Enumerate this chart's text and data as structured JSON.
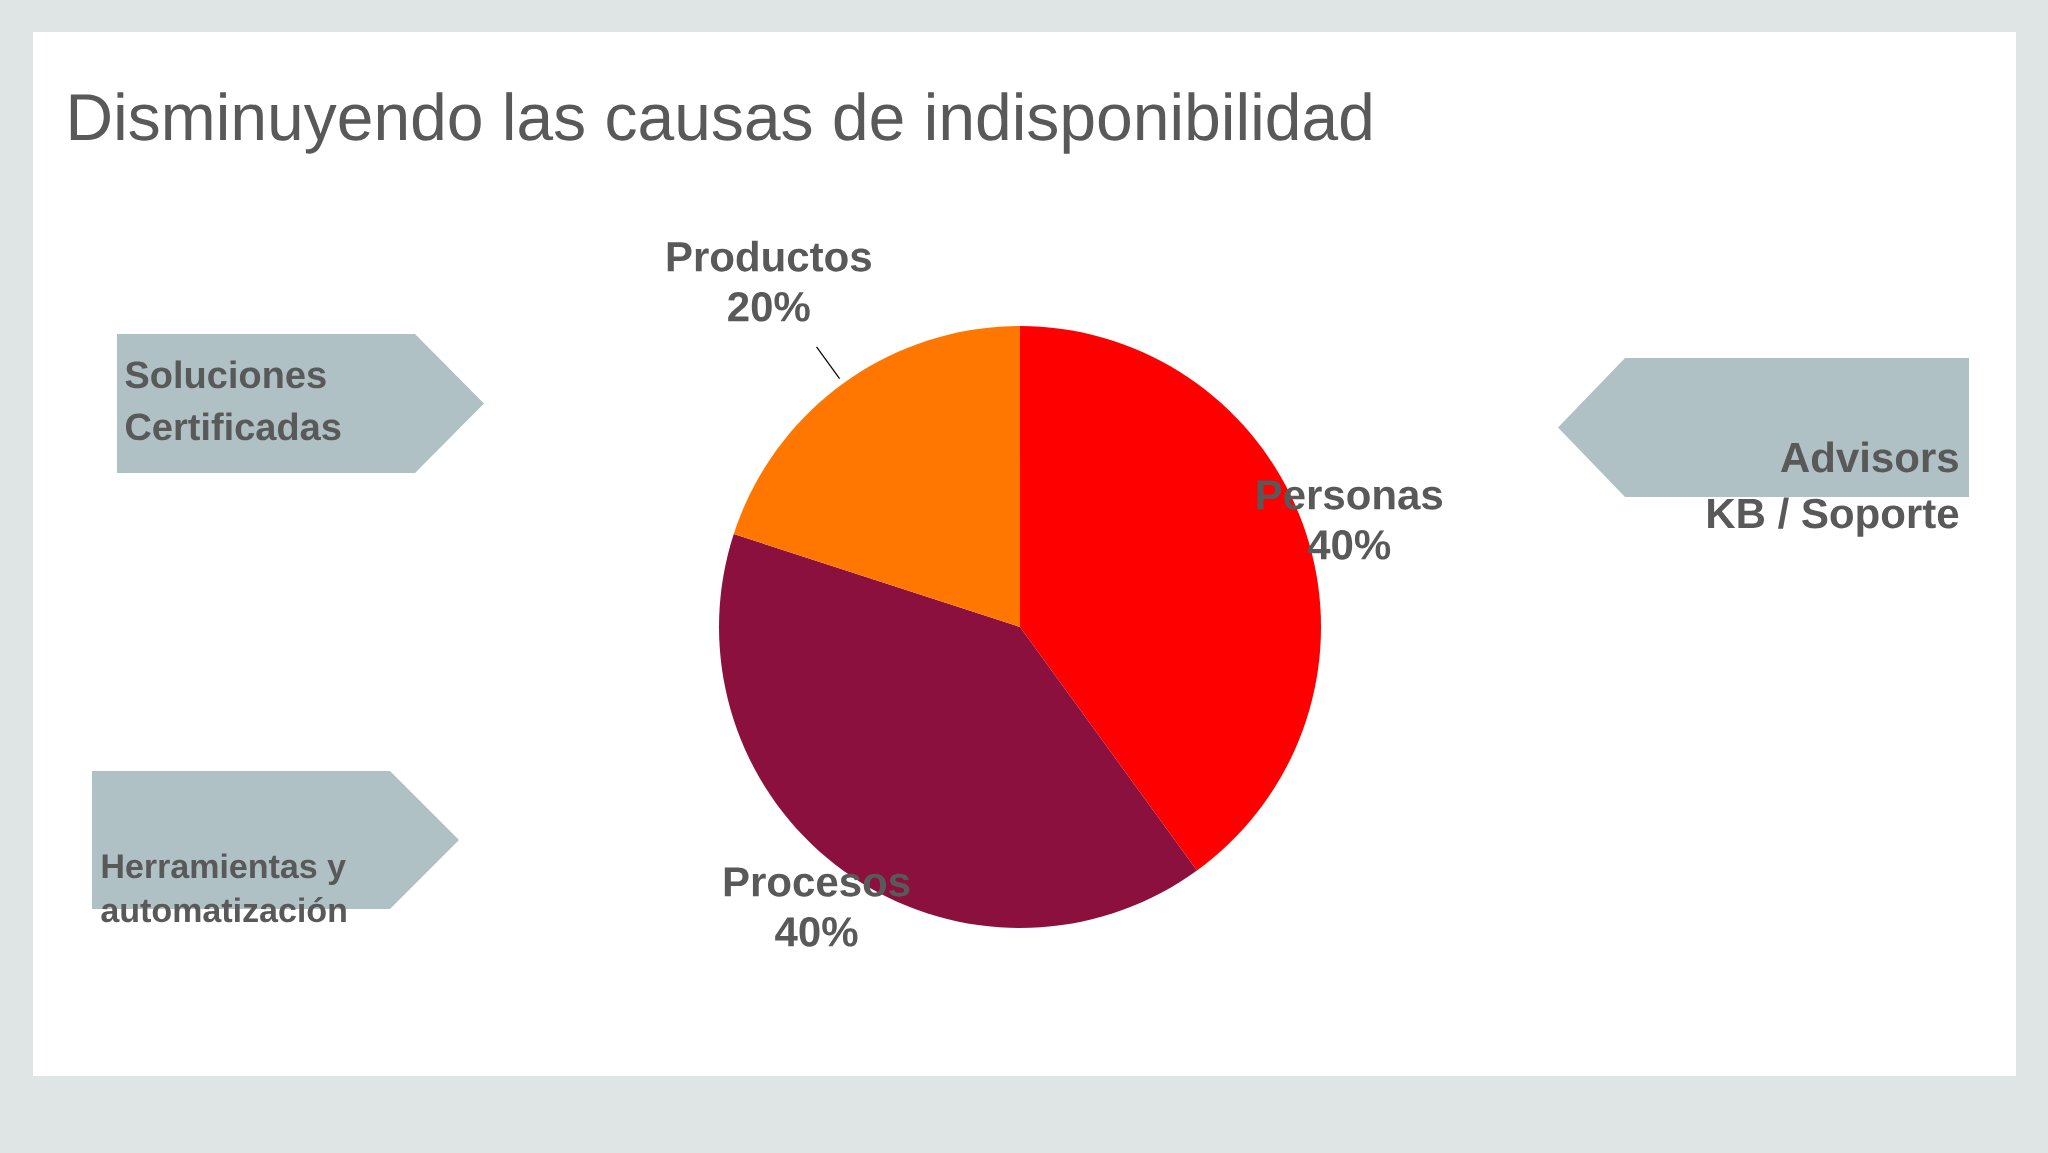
{
  "chart_data": {
    "type": "pie",
    "title": "Disminuyendo las causas de indisponibilidad",
    "categories": [
      "Personas",
      "Procesos",
      "Productos"
    ],
    "values": [
      40,
      40,
      20
    ],
    "value_labels": [
      "40%",
      "40%",
      "20%"
    ],
    "colors": [
      "#ff0000",
      "#8b103e",
      "#ff7700"
    ],
    "annotations": [
      "Soluciones",
      "Certificadas",
      "Herramientas y",
      "automatización",
      "Advisors",
      "KB / Soporte"
    ]
  }
}
